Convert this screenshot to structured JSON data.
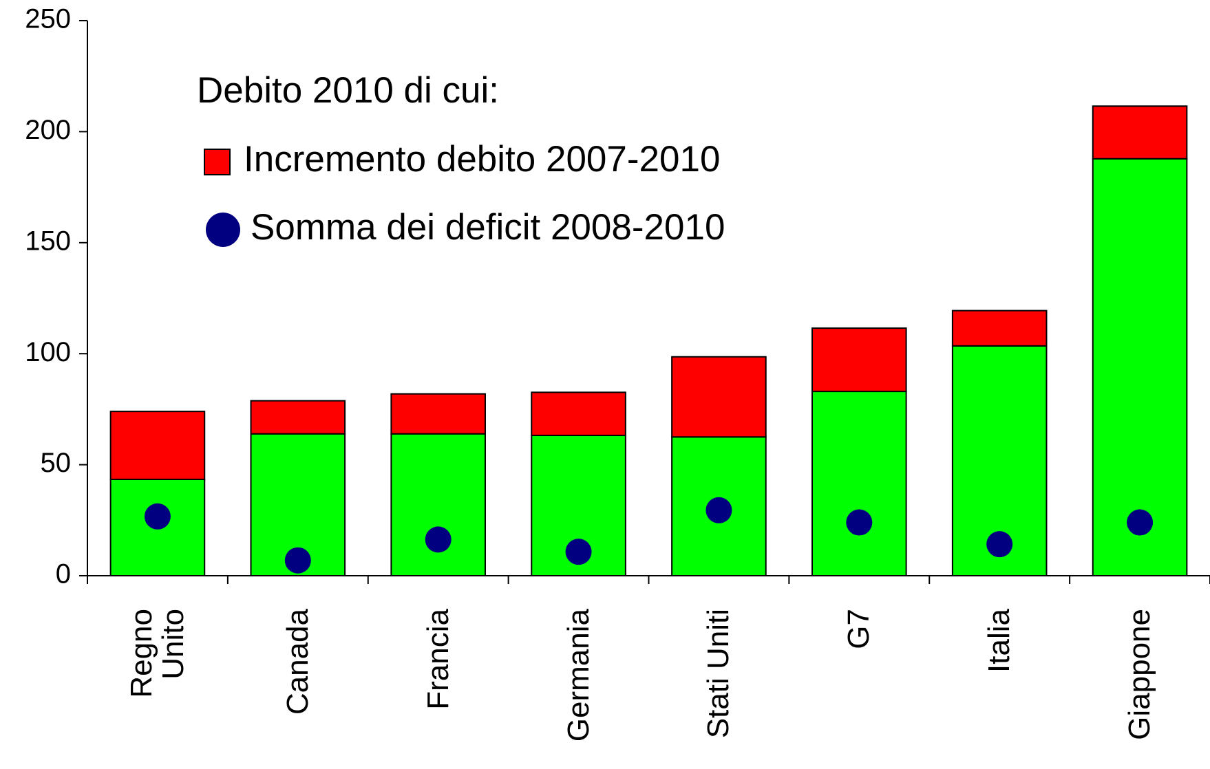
{
  "chart_data": {
    "type": "bar",
    "stacked": true,
    "legend_title": "Debito 2010 di cui:",
    "categories": [
      "Regno\nUnito",
      "Canada",
      "Francia",
      "Germania",
      "Stati Uniti",
      "G7",
      "Italia",
      "Giappone"
    ],
    "series": [
      {
        "color": "#00ff00",
        "values": [
          43.4,
          63.9,
          63.9,
          63.2,
          62.5,
          83,
          103.5,
          187.8
        ]
      },
      {
        "name": "Incremento debito 2007-2010",
        "color": "#ff0000",
        "values": [
          30.6,
          14.9,
          18,
          19.4,
          36.1,
          28.5,
          15.9,
          23.7
        ]
      },
      {
        "name": "Somma dei deficit 2008-2010",
        "color": "#000080",
        "type": "scatter",
        "values": [
          26.7,
          6.9,
          16.3,
          10.8,
          29.5,
          24,
          14.2,
          24
        ]
      }
    ],
    "ylim": [
      0,
      250
    ],
    "yticks": [
      0,
      50,
      100,
      150,
      200,
      250
    ],
    "grid": false
  }
}
